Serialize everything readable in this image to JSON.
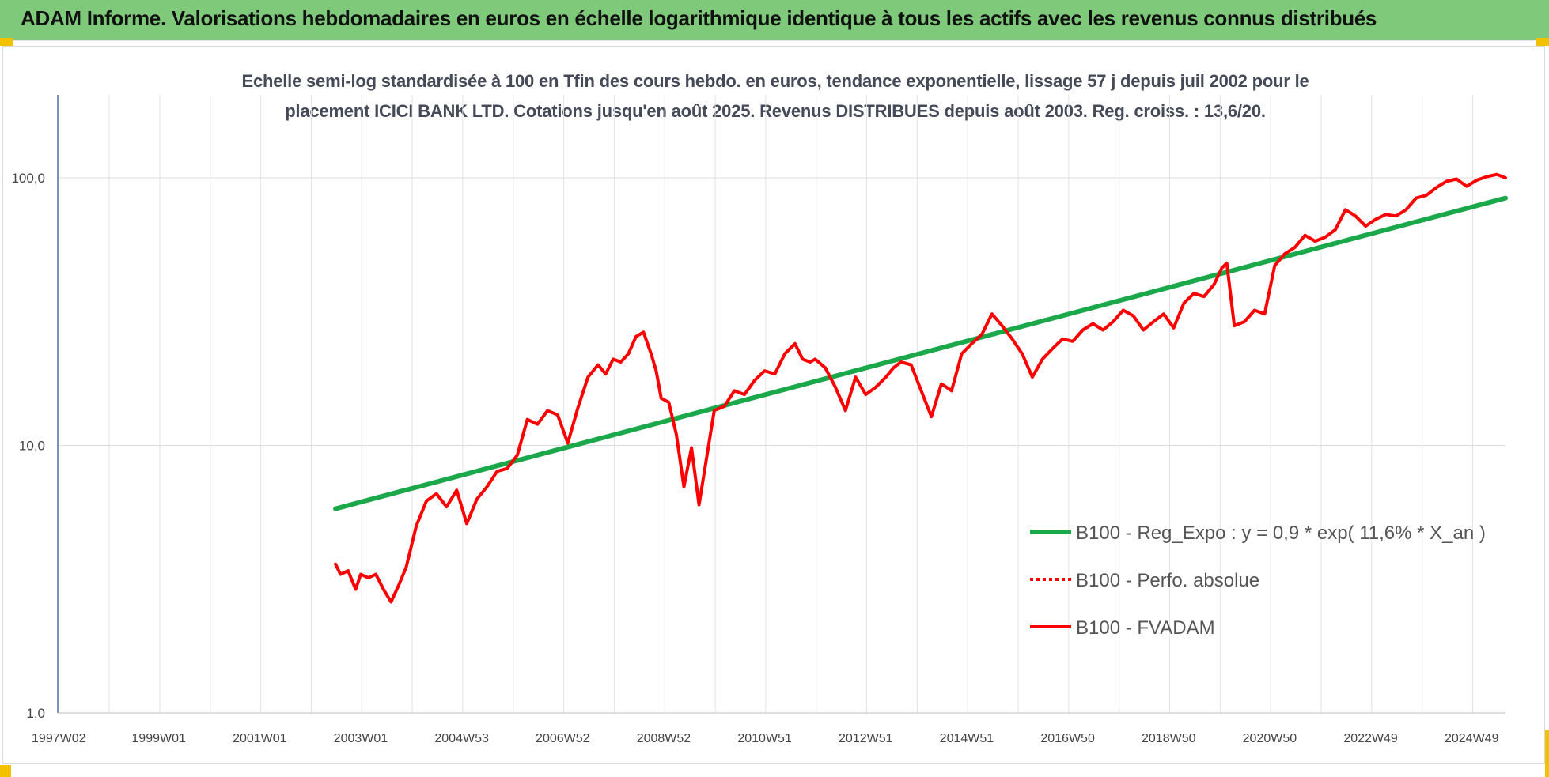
{
  "header": {
    "title": "ADAM Informe. Valorisations hebdomadaires en euros en échelle logarithmique identique à tous les actifs avec les revenus connus distribués"
  },
  "colors": {
    "banner": "#7fc97a",
    "corner_accent": "#f2c200",
    "regression": "#1aa84a",
    "fvadam": "#ff0000",
    "perfo": "#ff0000"
  },
  "chart_data": {
    "type": "line",
    "title_line1": "Echelle semi-log standardisée à 100 en Tfin des cours hebdo. en euros, tendance exponentielle, lissage 57 j depuis juil 2002 pour le",
    "title_line2": "placement ICICI BANK LTD. Cotations jusqu'en août 2025. Revenus DISTRIBUES depuis août 2003. Reg. croiss. : 13,6/20.",
    "y_scale": "log",
    "ylim": [
      1,
      100
    ],
    "y_ticks": [
      "1,0",
      "10,0",
      "100,0"
    ],
    "xlim": [
      1997.0,
      2025.67
    ],
    "x_ticks": [
      {
        "label": "1997W02",
        "year": 1997.02
      },
      {
        "label": "1999W01",
        "year": 1999.0
      },
      {
        "label": "2001W01",
        "year": 2001.0
      },
      {
        "label": "2003W01",
        "year": 2003.0
      },
      {
        "label": "2004W53",
        "year": 2005.0
      },
      {
        "label": "2006W52",
        "year": 2007.0
      },
      {
        "label": "2008W52",
        "year": 2009.0
      },
      {
        "label": "2010W51",
        "year": 2011.0
      },
      {
        "label": "2012W51",
        "year": 2013.0
      },
      {
        "label": "2014W51",
        "year": 2015.0
      },
      {
        "label": "2016W50",
        "year": 2017.0
      },
      {
        "label": "2018W50",
        "year": 2019.0
      },
      {
        "label": "2020W50",
        "year": 2021.0
      },
      {
        "label": "2022W49",
        "year": 2023.0
      },
      {
        "label": "2024W49",
        "year": 2025.0
      }
    ],
    "grid": true,
    "legend_position": "right",
    "series": [
      {
        "name": "B100 - Reg_Expo : y = 0,9 * exp( 11,6% *  X_an )",
        "style": "solid-green",
        "x": [
          2002.5,
          2025.67
        ],
        "y": [
          5.8,
          84
        ]
      },
      {
        "name": "B100 - Perfo. absolue",
        "style": "dotted-red",
        "x": [],
        "y": []
      },
      {
        "name": "B100 - FVADAM",
        "style": "solid-red",
        "x": [
          2002.5,
          2002.6,
          2002.75,
          2002.9,
          2003.0,
          2003.15,
          2003.3,
          2003.45,
          2003.6,
          2003.75,
          2003.9,
          2004.1,
          2004.3,
          2004.5,
          2004.7,
          2004.9,
          2005.1,
          2005.3,
          2005.5,
          2005.7,
          2005.9,
          2006.1,
          2006.3,
          2006.5,
          2006.7,
          2006.9,
          2007.1,
          2007.3,
          2007.5,
          2007.7,
          2007.85,
          2008.0,
          2008.15,
          2008.3,
          2008.45,
          2008.6,
          2008.75,
          2008.85,
          2008.95,
          2009.1,
          2009.25,
          2009.4,
          2009.55,
          2009.7,
          2009.85,
          2010.0,
          2010.2,
          2010.4,
          2010.6,
          2010.8,
          2011.0,
          2011.2,
          2011.4,
          2011.6,
          2011.75,
          2011.9,
          2012.0,
          2012.2,
          2012.4,
          2012.6,
          2012.8,
          2013.0,
          2013.2,
          2013.4,
          2013.55,
          2013.7,
          2013.9,
          2014.1,
          2014.3,
          2014.5,
          2014.7,
          2014.9,
          2015.1,
          2015.3,
          2015.5,
          2015.7,
          2015.9,
          2016.1,
          2016.3,
          2016.5,
          2016.7,
          2016.9,
          2017.1,
          2017.3,
          2017.5,
          2017.7,
          2017.9,
          2018.1,
          2018.3,
          2018.5,
          2018.7,
          2018.9,
          2019.1,
          2019.3,
          2019.5,
          2019.7,
          2019.9,
          2020.05,
          2020.15,
          2020.3,
          2020.5,
          2020.7,
          2020.9,
          2021.1,
          2021.3,
          2021.5,
          2021.7,
          2021.9,
          2022.1,
          2022.3,
          2022.5,
          2022.7,
          2022.9,
          2023.1,
          2023.3,
          2023.5,
          2023.7,
          2023.9,
          2024.1,
          2024.3,
          2024.5,
          2024.7,
          2024.9,
          2025.1,
          2025.3,
          2025.5,
          2025.67
        ],
        "y": [
          3.6,
          3.3,
          3.4,
          2.9,
          3.3,
          3.2,
          3.3,
          2.9,
          2.6,
          3.0,
          3.5,
          5.0,
          6.2,
          6.6,
          5.9,
          6.8,
          5.1,
          6.3,
          7.0,
          8.0,
          8.2,
          9.2,
          12.5,
          12.0,
          13.5,
          13.0,
          10.2,
          13.8,
          18.0,
          20.0,
          18.5,
          21.0,
          20.5,
          22.0,
          25.5,
          26.5,
          22.0,
          19.0,
          15.0,
          14.5,
          11.0,
          7.0,
          9.8,
          6.0,
          9.0,
          13.5,
          14.0,
          16.0,
          15.5,
          17.5,
          19.0,
          18.5,
          22.0,
          24.0,
          21.0,
          20.5,
          21.0,
          19.5,
          16.5,
          13.5,
          18.0,
          15.5,
          16.5,
          18.0,
          19.5,
          20.5,
          20.0,
          16.0,
          12.8,
          17.0,
          16.0,
          22.0,
          24.0,
          26.0,
          31.0,
          28.0,
          25.0,
          22.0,
          18.0,
          21.0,
          23.0,
          25.0,
          24.5,
          27.0,
          28.5,
          27.0,
          29.0,
          32.0,
          30.5,
          27.0,
          29.0,
          31.0,
          27.5,
          34.0,
          37.0,
          36.0,
          40.0,
          46.0,
          48.0,
          28.0,
          29.0,
          32.0,
          31.0,
          47.0,
          52.0,
          55.0,
          61.0,
          58.0,
          60.0,
          64.0,
          76.0,
          72.0,
          66.0,
          70.0,
          73.0,
          72.0,
          76.0,
          84.0,
          86.0,
          92.0,
          97.0,
          99.0,
          93.0,
          98.0,
          101.0,
          103.0,
          100.0
        ]
      }
    ]
  }
}
